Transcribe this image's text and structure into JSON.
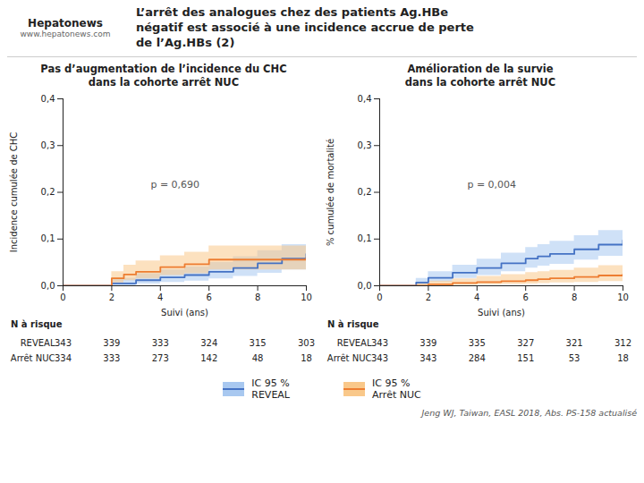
{
  "title": [
    "L’arrêt des analogues chez des patients Ag.HBe",
    "négatif est associé à une incidence accrue de perte",
    "de l’Ag.HBs (2)"
  ],
  "logo": {
    "name": "Hepatonews",
    "url": "www.hepatonews.com"
  },
  "caption": "Jeng WJ, Taiwan, EASL 2018, Abs. PS-158 actualisé",
  "legend": "bottom",
  "ci_label": "IC 95 %",
  "chart_data": [
    {
      "type": "step",
      "title": [
        "Pas d’augmentation de l’incidence du CHC",
        "dans la cohorte arrêt NUC"
      ],
      "xlabel": "Suivi (ans)",
      "ylabel": "Incidence cumulée de CHC",
      "xlim": [
        0,
        10
      ],
      "ylim": [
        0,
        0.4
      ],
      "xticks": [
        0,
        2,
        4,
        6,
        8,
        10
      ],
      "yticks": [
        {
          "value": 0.0,
          "label": "0,0"
        },
        {
          "value": 0.1,
          "label": "0,1"
        },
        {
          "value": 0.2,
          "label": "0,2"
        },
        {
          "value": 0.3,
          "label": "0,3"
        },
        {
          "value": 0.4,
          "label": "0,4"
        }
      ],
      "annotations": [
        {
          "text": "p = 0,690"
        }
      ],
      "series": [
        {
          "name": "REVEAL",
          "color": "#4472c4",
          "ci_color": "#a8c8f0",
          "x": [
            0,
            2,
            3,
            4,
            5,
            6,
            7,
            8,
            9,
            10
          ],
          "values": [
            0,
            0.005,
            0.012,
            0.018,
            0.023,
            0.03,
            0.038,
            0.048,
            0.058,
            0.068
          ],
          "ci_low": [
            0,
            0.0,
            0.004,
            0.007,
            0.01,
            0.015,
            0.02,
            0.027,
            0.034,
            0.04
          ],
          "ci_high": [
            0,
            0.016,
            0.026,
            0.034,
            0.04,
            0.05,
            0.062,
            0.075,
            0.088,
            0.1
          ]
        },
        {
          "name": "Arrêt NUC",
          "color": "#ed7d31",
          "ci_color": "#f9c88a",
          "x": [
            0,
            2,
            2.5,
            3,
            4,
            5,
            6,
            7,
            8,
            9,
            10
          ],
          "values": [
            0,
            0.016,
            0.024,
            0.03,
            0.04,
            0.046,
            0.056,
            0.056,
            0.056,
            0.056,
            0.06
          ],
          "ci_low": [
            0,
            0.006,
            0.011,
            0.015,
            0.022,
            0.026,
            0.034,
            0.034,
            0.034,
            0.034,
            0.036
          ],
          "ci_high": [
            0,
            0.03,
            0.044,
            0.053,
            0.064,
            0.072,
            0.085,
            0.085,
            0.085,
            0.085,
            0.092
          ]
        }
      ],
      "at_risk": {
        "label": "N à risque",
        "x": [
          0,
          2,
          4,
          6,
          8,
          10
        ],
        "series": [
          {
            "name": "REVEAL",
            "values": [
              343,
              339,
              333,
              324,
              315,
              303
            ]
          },
          {
            "name": "Arrêt NUC",
            "values": [
              334,
              333,
              273,
              142,
              48,
              18
            ]
          }
        ]
      }
    },
    {
      "type": "step",
      "title": [
        "Amélioration de la survie",
        "dans la cohorte arrêt NUC"
      ],
      "xlabel": "Suivi (ans)",
      "ylabel": "% cumulée de mortalité",
      "xlim": [
        0,
        10
      ],
      "ylim": [
        0,
        0.4
      ],
      "xticks": [
        0,
        2,
        4,
        6,
        8,
        10
      ],
      "yticks": [
        {
          "value": 0.0,
          "label": "0,0"
        },
        {
          "value": 0.1,
          "label": "0,1"
        },
        {
          "value": 0.2,
          "label": "0,2"
        },
        {
          "value": 0.3,
          "label": "0,3"
        },
        {
          "value": 0.4,
          "label": "0,4"
        }
      ],
      "annotations": [
        {
          "text": "p = 0,004"
        }
      ],
      "series": [
        {
          "name": "REVEAL",
          "color": "#4472c4",
          "ci_color": "#a8c8f0",
          "x": [
            0,
            1.5,
            2,
            3,
            4,
            5,
            6,
            6.5,
            7,
            8,
            9,
            10
          ],
          "values": [
            0,
            0.007,
            0.017,
            0.028,
            0.038,
            0.048,
            0.058,
            0.063,
            0.068,
            0.078,
            0.088,
            0.097
          ],
          "ci_low": [
            0,
            0.002,
            0.008,
            0.016,
            0.022,
            0.03,
            0.038,
            0.042,
            0.046,
            0.055,
            0.063,
            0.07
          ],
          "ci_high": [
            0,
            0.016,
            0.03,
            0.044,
            0.057,
            0.07,
            0.082,
            0.088,
            0.095,
            0.107,
            0.118,
            0.128
          ]
        },
        {
          "name": "Arrêt NUC",
          "color": "#ed7d31",
          "ci_color": "#f9c88a",
          "x": [
            0,
            1.5,
            2,
            3,
            4,
            5,
            6,
            6.5,
            7,
            8,
            9,
            10
          ],
          "values": [
            0,
            0.0,
            0.003,
            0.006,
            0.008,
            0.01,
            0.012,
            0.014,
            0.016,
            0.019,
            0.022,
            0.025
          ],
          "ci_low": [
            0,
            0.0,
            0.0,
            0.001,
            0.002,
            0.003,
            0.004,
            0.005,
            0.006,
            0.007,
            0.009,
            0.011
          ],
          "ci_high": [
            0,
            0.006,
            0.01,
            0.015,
            0.02,
            0.024,
            0.028,
            0.03,
            0.033,
            0.038,
            0.043,
            0.05
          ]
        }
      ],
      "at_risk": {
        "label": "N à risque",
        "x": [
          0,
          2,
          4,
          6,
          8,
          10
        ],
        "series": [
          {
            "name": "REVEAL",
            "values": [
              343,
              339,
              335,
              327,
              321,
              312
            ]
          },
          {
            "name": "Arrêt NUC",
            "values": [
              343,
              343,
              284,
              151,
              53,
              18
            ]
          }
        ]
      }
    }
  ]
}
